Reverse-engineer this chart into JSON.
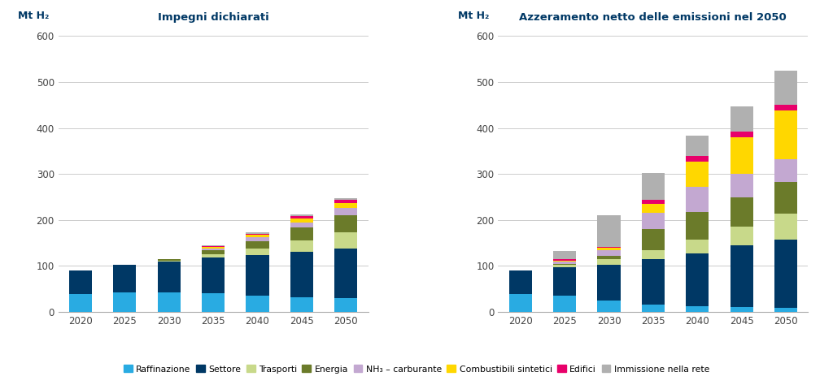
{
  "title_left": "Impegni dichiarati",
  "title_right": "Azzeramento netto delle emissioni nel 2050",
  "ylabel": "Mt H₂",
  "years": [
    2020,
    2025,
    2030,
    2035,
    2040,
    2045,
    2050
  ],
  "categories": [
    "Raffinazione",
    "Settore",
    "Trasporti",
    "Energia",
    "NH₃ – carburante",
    "Combustibili sintetici",
    "Edifici",
    "Immissione nella rete"
  ],
  "colors": [
    "#29ABE2",
    "#003865",
    "#C8D98A",
    "#6B7B2A",
    "#C3A8D1",
    "#FFD700",
    "#E8006A",
    "#B0B0B0"
  ],
  "left_data": {
    "Raffinazione": [
      38,
      43,
      42,
      40,
      35,
      32,
      30
    ],
    "Settore": [
      52,
      60,
      68,
      78,
      88,
      98,
      108
    ],
    "Trasporti": [
      0,
      0,
      2,
      8,
      15,
      25,
      35
    ],
    "Energia": [
      0,
      0,
      2,
      8,
      16,
      28,
      38
    ],
    "NH₃ – carburante": [
      0,
      0,
      1,
      4,
      8,
      12,
      15
    ],
    "Combustibili sintetici": [
      0,
      0,
      0,
      3,
      5,
      8,
      10
    ],
    "Edifici": [
      0,
      0,
      0,
      2,
      3,
      6,
      8
    ],
    "Immissione nella rete": [
      0,
      0,
      0,
      2,
      3,
      3,
      4
    ]
  },
  "right_data": {
    "Raffinazione": [
      38,
      35,
      25,
      15,
      12,
      10,
      8
    ],
    "Settore": [
      52,
      62,
      77,
      100,
      115,
      135,
      150
    ],
    "Trasporti": [
      0,
      5,
      12,
      20,
      30,
      40,
      55
    ],
    "Energia": [
      0,
      2,
      8,
      45,
      60,
      65,
      70
    ],
    "NH₃ – carburante": [
      0,
      5,
      12,
      35,
      55,
      50,
      50
    ],
    "Combustibili sintetici": [
      0,
      3,
      5,
      20,
      55,
      80,
      105
    ],
    "Edifici": [
      0,
      2,
      3,
      8,
      12,
      12,
      12
    ],
    "Immissione nella rete": [
      0,
      18,
      68,
      60,
      45,
      55,
      75
    ]
  },
  "ylim": [
    0,
    620
  ],
  "yticks": [
    0,
    100,
    200,
    300,
    400,
    500,
    600
  ],
  "background_color": "#FFFFFF",
  "title_color": "#003865",
  "axis_color": "#003865",
  "grid_color": "#CCCCCC"
}
